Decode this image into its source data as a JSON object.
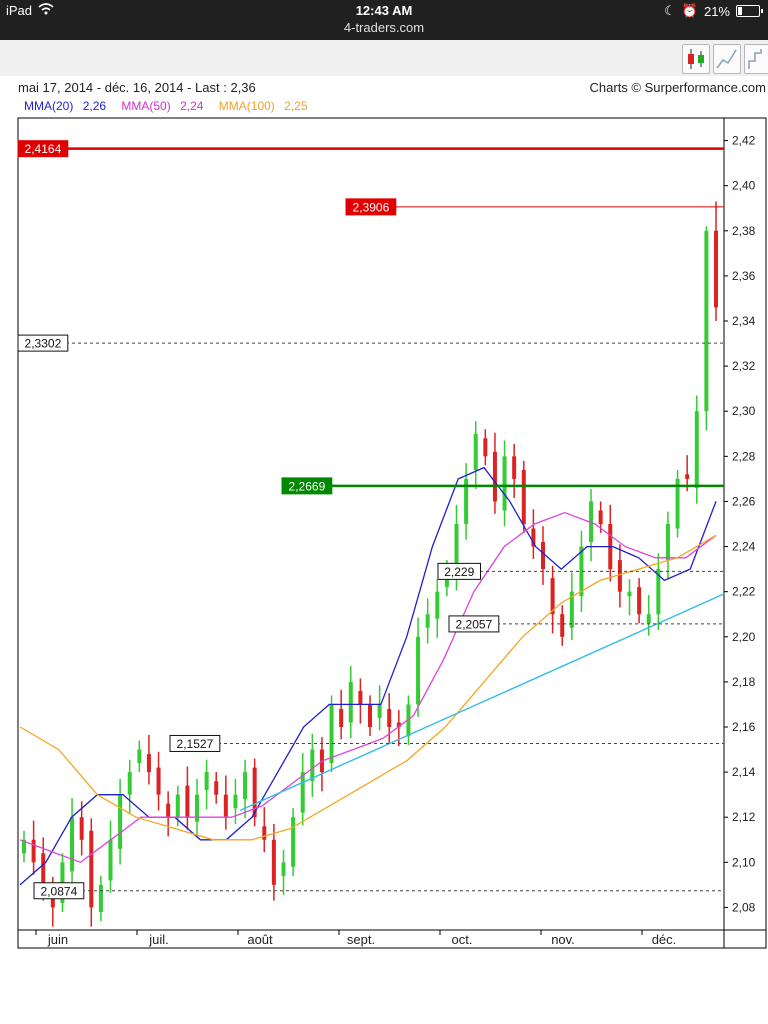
{
  "status_bar": {
    "device": "iPad",
    "time": "12:43 AM",
    "url": "4-traders.com",
    "battery": "21%",
    "battery_level": 0.21
  },
  "toolbar": {
    "buttons": [
      {
        "icon": "candlestick-chart-icon",
        "selected": true
      },
      {
        "icon": "line-chart-icon",
        "selected": false
      },
      {
        "icon": "step-chart-icon",
        "selected": false
      }
    ]
  },
  "chart_header": {
    "range": "mai 17, 2014 - déc. 16, 2014 - Last : 2,36",
    "credit": "Charts © Surperformance.com"
  },
  "legend": [
    {
      "label": "MMA(20)",
      "value": "2,26",
      "color": "#1f1fd0"
    },
    {
      "label": "MMA(50)",
      "value": "2,24",
      "color": "#cc33cc"
    },
    {
      "label": "MMA(100)",
      "value": "2,25",
      "color": "#f0a030"
    }
  ],
  "colors": {
    "up_candle": "#33cc33",
    "down_candle": "#dd2222",
    "mma20": "#1f1fd0",
    "mma50": "#dd44dd",
    "mma100": "#f5a623",
    "trendline": "#33bbee",
    "resistance": "#e00000",
    "support": "#008800"
  },
  "chart_data": {
    "type": "candlestick",
    "title": "",
    "ylim": [
      2.07,
      2.43
    ],
    "y_ticks": [
      "2,08",
      "2,10",
      "2,12",
      "2,14",
      "2,16",
      "2,18",
      "2,20",
      "2,22",
      "2,24",
      "2,26",
      "2,28",
      "2,30",
      "2,32",
      "2,34",
      "2,36",
      "2,38",
      "2,40",
      "2,42"
    ],
    "x_labels": [
      "juin",
      "juil.",
      "août",
      "sept.",
      "oct.",
      "nov.",
      "déc."
    ],
    "x_date_range": [
      "2014-05-17",
      "2014-12-16"
    ],
    "last": "2,36",
    "levels": [
      {
        "label": "2,4164",
        "value": 2.4164,
        "style": "solid-red-thick"
      },
      {
        "label": "2,3906",
        "value": 2.3906,
        "style": "solid-red"
      },
      {
        "label": "2,3302",
        "value": 2.3302,
        "style": "dashed"
      },
      {
        "label": "2,2669",
        "value": 2.2669,
        "style": "solid-green"
      },
      {
        "label": "2,229",
        "value": 2.229,
        "style": "dashed"
      },
      {
        "label": "2,2057",
        "value": 2.2057,
        "style": "dashed"
      },
      {
        "label": "2,1527",
        "value": 2.1527,
        "style": "dashed"
      },
      {
        "label": "2,0874",
        "value": 2.0874,
        "style": "dashed"
      }
    ],
    "price": [
      2.11,
      2.1,
      2.09,
      2.08,
      2.1,
      2.12,
      2.11,
      2.08,
      2.09,
      2.11,
      2.13,
      2.14,
      2.15,
      2.14,
      2.13,
      2.12,
      2.13,
      2.12,
      2.13,
      2.14,
      2.13,
      2.12,
      2.13,
      2.14,
      2.12,
      2.11,
      2.09,
      2.1,
      2.12,
      2.14,
      2.15,
      2.14,
      2.17,
      2.16,
      2.18,
      2.17,
      2.16,
      2.17,
      2.16,
      2.16,
      2.17,
      2.2,
      2.21,
      2.22,
      2.23,
      2.25,
      2.27,
      2.29,
      2.28,
      2.26,
      2.28,
      2.27,
      2.25,
      2.24,
      2.23,
      2.21,
      2.2,
      2.22,
      2.24,
      2.26,
      2.25,
      2.23,
      2.22,
      2.22,
      2.21,
      2.21,
      2.23,
      2.25,
      2.27,
      2.27,
      2.3,
      2.38,
      2.36
    ],
    "series": [
      {
        "name": "MMA(20)",
        "color": "#1f1fd0",
        "values": [
          2.09,
          2.1,
          2.12,
          2.13,
          2.13,
          2.12,
          2.12,
          2.11,
          2.11,
          2.12,
          2.14,
          2.16,
          2.17,
          2.17,
          2.17,
          2.2,
          2.24,
          2.27,
          2.275,
          2.26,
          2.24,
          2.23,
          2.24,
          2.24,
          2.235,
          2.225,
          2.23,
          2.26
        ]
      },
      {
        "name": "MMA(50)",
        "color": "#dd44dd",
        "values": [
          2.11,
          2.105,
          2.1,
          2.11,
          2.12,
          2.12,
          2.12,
          2.12,
          2.125,
          2.135,
          2.145,
          2.15,
          2.155,
          2.165,
          2.19,
          2.22,
          2.24,
          2.25,
          2.255,
          2.25,
          2.24,
          2.235,
          2.235,
          2.245
        ]
      },
      {
        "name": "MMA(100)",
        "color": "#f5a623",
        "values": [
          2.16,
          2.15,
          2.13,
          2.12,
          2.115,
          2.11,
          2.11,
          2.115,
          2.125,
          2.135,
          2.145,
          2.16,
          2.18,
          2.2,
          2.215,
          2.225,
          2.23,
          2.235,
          2.245
        ]
      }
    ]
  }
}
